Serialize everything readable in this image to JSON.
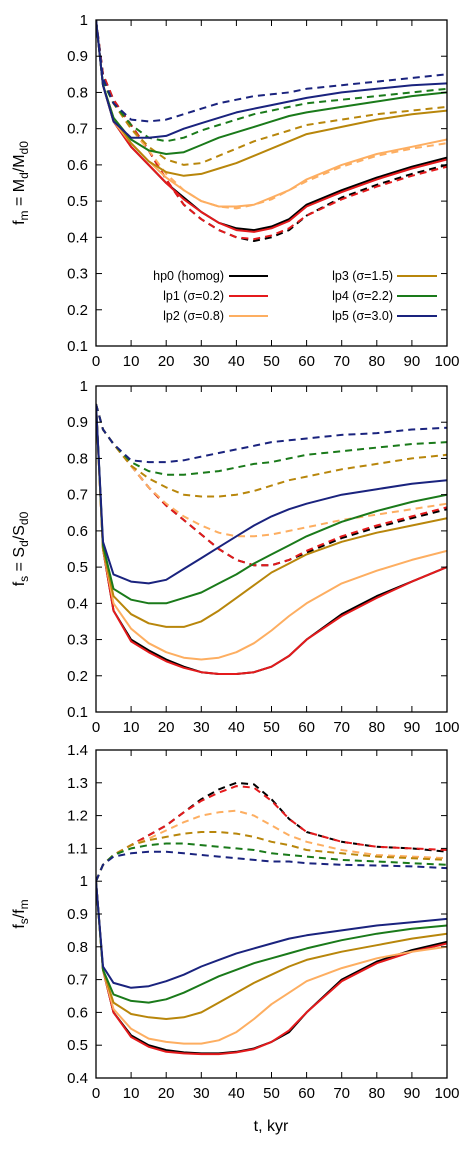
{
  "figure": {
    "xlabel": "t, kyr"
  },
  "chart_data": [
    {
      "type": "line",
      "ylabel": "f_m = M_d/M_d0",
      "ylabel_parts": {
        "a": "f",
        "a_sub": "m",
        "b": " = M",
        "b_sub": "d",
        "c": "/M",
        "c_sub": "d0"
      },
      "xlim": [
        0,
        100
      ],
      "ylim": [
        0.1,
        1
      ],
      "xticks": [
        0,
        10,
        20,
        30,
        40,
        50,
        60,
        70,
        80,
        90,
        100
      ],
      "yticks": [
        0.1,
        0.2,
        0.3,
        0.4,
        0.5,
        0.6,
        0.7,
        0.8,
        0.9,
        1
      ],
      "grid": false,
      "legend": {
        "placement": "lower-center",
        "entries": [
          {
            "label": "hp0 (homog)",
            "color": "#000000"
          },
          {
            "label": "lp1 (σ=0.2)",
            "color": "#e41a1c"
          },
          {
            "label": "lp2 (σ=0.8)",
            "color": "#fdae61"
          },
          {
            "label": "lp3 (σ=1.5)",
            "color": "#b8860b"
          },
          {
            "label": "lp4 (σ=2.2)",
            "color": "#1a7a1a"
          },
          {
            "label": "lp5 (σ=3.0)",
            "color": "#1a237e"
          }
        ]
      },
      "x": [
        0,
        2,
        5,
        10,
        15,
        20,
        25,
        30,
        35,
        40,
        45,
        50,
        55,
        60,
        70,
        80,
        90,
        100
      ],
      "series": [
        {
          "name": "hp0 (homog)",
          "style": "solid",
          "color": "#000000",
          "values": [
            1,
            0.82,
            0.72,
            0.65,
            0.6,
            0.55,
            0.51,
            0.47,
            0.44,
            0.425,
            0.42,
            0.43,
            0.45,
            0.49,
            0.53,
            0.565,
            0.595,
            0.62
          ]
        },
        {
          "style": "dashed",
          "color": "#000000",
          "values": [
            1,
            0.85,
            0.78,
            0.71,
            0.64,
            0.56,
            0.49,
            0.45,
            0.42,
            0.4,
            0.39,
            0.4,
            0.42,
            0.46,
            0.51,
            0.545,
            0.575,
            0.6
          ]
        },
        {
          "name": "lp1 (σ=0.2)",
          "style": "solid",
          "color": "#e41a1c",
          "values": [
            1,
            0.82,
            0.72,
            0.65,
            0.6,
            0.55,
            0.505,
            0.47,
            0.44,
            0.42,
            0.415,
            0.425,
            0.445,
            0.485,
            0.525,
            0.56,
            0.59,
            0.615
          ]
        },
        {
          "style": "dashed",
          "color": "#e41a1c",
          "values": [
            1,
            0.85,
            0.78,
            0.71,
            0.64,
            0.56,
            0.49,
            0.45,
            0.42,
            0.4,
            0.395,
            0.405,
            0.425,
            0.46,
            0.505,
            0.54,
            0.57,
            0.595
          ]
        },
        {
          "name": "lp2 (σ=0.8)",
          "style": "solid",
          "color": "#fdae61",
          "values": [
            1,
            0.82,
            0.72,
            0.66,
            0.61,
            0.565,
            0.53,
            0.5,
            0.485,
            0.485,
            0.49,
            0.51,
            0.53,
            0.56,
            0.6,
            0.63,
            0.65,
            0.67
          ]
        },
        {
          "style": "dashed",
          "color": "#fdae61",
          "values": [
            1,
            0.84,
            0.77,
            0.7,
            0.64,
            0.575,
            0.53,
            0.5,
            0.485,
            0.48,
            0.49,
            0.505,
            0.53,
            0.555,
            0.595,
            0.625,
            0.645,
            0.66
          ]
        },
        {
          "name": "lp3 (σ=1.5)",
          "style": "solid",
          "color": "#b8860b",
          "values": [
            1,
            0.82,
            0.73,
            0.66,
            0.61,
            0.58,
            0.57,
            0.575,
            0.59,
            0.605,
            0.625,
            0.645,
            0.665,
            0.685,
            0.705,
            0.725,
            0.74,
            0.75
          ]
        },
        {
          "style": "dashed",
          "color": "#b8860b",
          "values": [
            1,
            0.83,
            0.77,
            0.7,
            0.65,
            0.615,
            0.6,
            0.605,
            0.625,
            0.645,
            0.665,
            0.68,
            0.695,
            0.71,
            0.725,
            0.74,
            0.75,
            0.76
          ]
        },
        {
          "name": "lp4 (σ=2.2)",
          "style": "solid",
          "color": "#1a7a1a",
          "values": [
            1,
            0.82,
            0.73,
            0.67,
            0.64,
            0.63,
            0.635,
            0.655,
            0.675,
            0.69,
            0.705,
            0.72,
            0.735,
            0.745,
            0.76,
            0.775,
            0.79,
            0.8
          ]
        },
        {
          "style": "dashed",
          "color": "#1a7a1a",
          "values": [
            1,
            0.83,
            0.77,
            0.71,
            0.675,
            0.665,
            0.675,
            0.695,
            0.71,
            0.725,
            0.74,
            0.75,
            0.76,
            0.77,
            0.78,
            0.79,
            0.8,
            0.81
          ]
        },
        {
          "name": "lp5 (σ=3.0)",
          "style": "solid",
          "color": "#1a237e",
          "values": [
            1,
            0.82,
            0.72,
            0.675,
            0.675,
            0.68,
            0.7,
            0.715,
            0.73,
            0.745,
            0.755,
            0.765,
            0.775,
            0.785,
            0.8,
            0.81,
            0.82,
            0.825
          ]
        },
        {
          "style": "dashed",
          "color": "#1a237e",
          "values": [
            1,
            0.84,
            0.77,
            0.725,
            0.72,
            0.725,
            0.74,
            0.755,
            0.77,
            0.78,
            0.79,
            0.795,
            0.8,
            0.81,
            0.82,
            0.83,
            0.84,
            0.85
          ]
        }
      ]
    },
    {
      "type": "line",
      "ylabel": "f_s = S_d/S_d0",
      "ylabel_parts": {
        "a": "f",
        "a_sub": "s",
        "b": " = S",
        "b_sub": "d",
        "c": "/S",
        "c_sub": "d0"
      },
      "xlim": [
        0,
        100
      ],
      "ylim": [
        0.1,
        1
      ],
      "xticks": [
        0,
        10,
        20,
        30,
        40,
        50,
        60,
        70,
        80,
        90,
        100
      ],
      "yticks": [
        0.1,
        0.2,
        0.3,
        0.4,
        0.5,
        0.6,
        0.7,
        0.8,
        0.9,
        1
      ],
      "grid": false,
      "x": [
        0,
        2,
        5,
        10,
        15,
        20,
        25,
        30,
        35,
        40,
        45,
        50,
        55,
        60,
        70,
        80,
        90,
        100
      ],
      "series": [
        {
          "style": "solid",
          "color": "#000000",
          "values": [
            0.95,
            0.55,
            0.38,
            0.3,
            0.27,
            0.245,
            0.225,
            0.21,
            0.205,
            0.205,
            0.21,
            0.225,
            0.255,
            0.3,
            0.37,
            0.42,
            0.46,
            0.5
          ]
        },
        {
          "style": "dashed",
          "color": "#000000",
          "values": [
            0.95,
            0.88,
            0.84,
            0.78,
            0.72,
            0.67,
            0.63,
            0.59,
            0.55,
            0.52,
            0.505,
            0.505,
            0.52,
            0.54,
            0.58,
            0.61,
            0.635,
            0.66
          ]
        },
        {
          "style": "solid",
          "color": "#e41a1c",
          "values": [
            0.95,
            0.55,
            0.38,
            0.295,
            0.265,
            0.24,
            0.222,
            0.21,
            0.205,
            0.205,
            0.21,
            0.225,
            0.255,
            0.3,
            0.365,
            0.415,
            0.46,
            0.5
          ]
        },
        {
          "style": "dashed",
          "color": "#e41a1c",
          "values": [
            0.95,
            0.88,
            0.84,
            0.78,
            0.72,
            0.67,
            0.63,
            0.59,
            0.55,
            0.52,
            0.505,
            0.505,
            0.52,
            0.545,
            0.585,
            0.615,
            0.64,
            0.665
          ]
        },
        {
          "style": "solid",
          "color": "#fdae61",
          "values": [
            0.95,
            0.55,
            0.4,
            0.33,
            0.29,
            0.265,
            0.25,
            0.245,
            0.25,
            0.265,
            0.29,
            0.325,
            0.365,
            0.4,
            0.455,
            0.49,
            0.52,
            0.545
          ]
        },
        {
          "style": "dashed",
          "color": "#fdae61",
          "values": [
            0.95,
            0.88,
            0.84,
            0.78,
            0.72,
            0.675,
            0.64,
            0.615,
            0.595,
            0.585,
            0.585,
            0.59,
            0.6,
            0.61,
            0.63,
            0.645,
            0.66,
            0.675
          ]
        },
        {
          "style": "solid",
          "color": "#b8860b",
          "values": [
            0.95,
            0.55,
            0.42,
            0.37,
            0.345,
            0.335,
            0.335,
            0.35,
            0.38,
            0.415,
            0.45,
            0.485,
            0.51,
            0.535,
            0.57,
            0.595,
            0.615,
            0.635
          ]
        },
        {
          "style": "dashed",
          "color": "#b8860b",
          "values": [
            0.95,
            0.88,
            0.84,
            0.78,
            0.745,
            0.72,
            0.7,
            0.695,
            0.695,
            0.7,
            0.71,
            0.725,
            0.74,
            0.75,
            0.77,
            0.785,
            0.8,
            0.81
          ]
        },
        {
          "style": "solid",
          "color": "#1a7a1a",
          "values": [
            0.95,
            0.56,
            0.44,
            0.41,
            0.4,
            0.4,
            0.415,
            0.43,
            0.455,
            0.48,
            0.51,
            0.535,
            0.56,
            0.585,
            0.625,
            0.655,
            0.68,
            0.7
          ]
        },
        {
          "style": "dashed",
          "color": "#1a7a1a",
          "values": [
            0.95,
            0.88,
            0.84,
            0.79,
            0.765,
            0.755,
            0.755,
            0.76,
            0.765,
            0.775,
            0.785,
            0.79,
            0.8,
            0.81,
            0.82,
            0.83,
            0.84,
            0.845
          ]
        },
        {
          "style": "solid",
          "color": "#1a237e",
          "values": [
            0.95,
            0.57,
            0.48,
            0.46,
            0.455,
            0.465,
            0.495,
            0.525,
            0.555,
            0.585,
            0.615,
            0.64,
            0.66,
            0.675,
            0.7,
            0.715,
            0.73,
            0.74
          ]
        },
        {
          "style": "dashed",
          "color": "#1a237e",
          "values": [
            0.95,
            0.88,
            0.84,
            0.795,
            0.79,
            0.79,
            0.795,
            0.805,
            0.815,
            0.825,
            0.835,
            0.845,
            0.85,
            0.855,
            0.865,
            0.87,
            0.88,
            0.885
          ]
        }
      ]
    },
    {
      "type": "line",
      "ylabel": "f_s/f_m",
      "ylabel_parts": {
        "a": "f",
        "a_sub": "s",
        "b": "/f",
        "b_sub": "m",
        "c": "",
        "c_sub": ""
      },
      "xlim": [
        0,
        100
      ],
      "ylim": [
        0.4,
        1.4
      ],
      "xticks": [
        0,
        10,
        20,
        30,
        40,
        50,
        60,
        70,
        80,
        90,
        100
      ],
      "yticks": [
        0.4,
        0.5,
        0.6,
        0.7,
        0.8,
        0.9,
        1,
        1.1,
        1.2,
        1.3,
        1.4
      ],
      "grid": false,
      "x": [
        0,
        2,
        5,
        10,
        15,
        20,
        25,
        30,
        35,
        40,
        45,
        50,
        55,
        60,
        70,
        80,
        90,
        100
      ],
      "series": [
        {
          "style": "solid",
          "color": "#000000",
          "values": [
            1.0,
            0.73,
            0.6,
            0.53,
            0.5,
            0.485,
            0.478,
            0.475,
            0.475,
            0.48,
            0.49,
            0.51,
            0.54,
            0.6,
            0.7,
            0.755,
            0.79,
            0.815
          ]
        },
        {
          "style": "dashed",
          "color": "#000000",
          "values": [
            1.0,
            1.05,
            1.08,
            1.11,
            1.14,
            1.17,
            1.21,
            1.25,
            1.28,
            1.3,
            1.295,
            1.25,
            1.19,
            1.15,
            1.12,
            1.105,
            1.1,
            1.09
          ]
        },
        {
          "style": "solid",
          "color": "#e41a1c",
          "values": [
            1.0,
            0.73,
            0.6,
            0.525,
            0.495,
            0.48,
            0.475,
            0.473,
            0.473,
            0.478,
            0.488,
            0.51,
            0.545,
            0.6,
            0.695,
            0.75,
            0.785,
            0.81
          ]
        },
        {
          "style": "dashed",
          "color": "#e41a1c",
          "values": [
            1.0,
            1.05,
            1.08,
            1.11,
            1.14,
            1.17,
            1.21,
            1.245,
            1.27,
            1.29,
            1.285,
            1.245,
            1.19,
            1.15,
            1.12,
            1.105,
            1.1,
            1.095
          ]
        },
        {
          "style": "solid",
          "color": "#fdae61",
          "values": [
            1.0,
            0.73,
            0.61,
            0.55,
            0.52,
            0.51,
            0.505,
            0.505,
            0.515,
            0.54,
            0.58,
            0.625,
            0.66,
            0.695,
            0.735,
            0.765,
            0.785,
            0.8
          ]
        },
        {
          "style": "dashed",
          "color": "#fdae61",
          "values": [
            1.0,
            1.05,
            1.08,
            1.11,
            1.13,
            1.155,
            1.18,
            1.2,
            1.21,
            1.215,
            1.2,
            1.17,
            1.14,
            1.12,
            1.095,
            1.08,
            1.075,
            1.07
          ]
        },
        {
          "style": "solid",
          "color": "#b8860b",
          "values": [
            1.0,
            0.73,
            0.63,
            0.595,
            0.585,
            0.58,
            0.585,
            0.6,
            0.63,
            0.66,
            0.69,
            0.715,
            0.74,
            0.76,
            0.785,
            0.805,
            0.825,
            0.84
          ]
        },
        {
          "style": "dashed",
          "color": "#b8860b",
          "values": [
            1.0,
            1.05,
            1.08,
            1.11,
            1.125,
            1.135,
            1.145,
            1.15,
            1.15,
            1.145,
            1.135,
            1.12,
            1.11,
            1.095,
            1.085,
            1.075,
            1.07,
            1.065
          ]
        },
        {
          "style": "solid",
          "color": "#1a7a1a",
          "values": [
            1.0,
            0.73,
            0.655,
            0.635,
            0.63,
            0.64,
            0.66,
            0.685,
            0.71,
            0.73,
            0.75,
            0.765,
            0.78,
            0.795,
            0.82,
            0.84,
            0.855,
            0.865
          ]
        },
        {
          "style": "dashed",
          "color": "#1a7a1a",
          "values": [
            1.0,
            1.05,
            1.08,
            1.1,
            1.11,
            1.115,
            1.115,
            1.11,
            1.105,
            1.1,
            1.095,
            1.085,
            1.08,
            1.075,
            1.065,
            1.06,
            1.055,
            1.05
          ]
        },
        {
          "style": "solid",
          "color": "#1a237e",
          "values": [
            1.0,
            0.74,
            0.69,
            0.675,
            0.68,
            0.695,
            0.715,
            0.74,
            0.76,
            0.78,
            0.795,
            0.81,
            0.825,
            0.835,
            0.85,
            0.865,
            0.875,
            0.885
          ]
        },
        {
          "style": "dashed",
          "color": "#1a237e",
          "values": [
            1.0,
            1.05,
            1.075,
            1.085,
            1.09,
            1.09,
            1.085,
            1.08,
            1.075,
            1.07,
            1.065,
            1.06,
            1.06,
            1.055,
            1.05,
            1.048,
            1.045,
            1.04
          ]
        }
      ]
    }
  ]
}
